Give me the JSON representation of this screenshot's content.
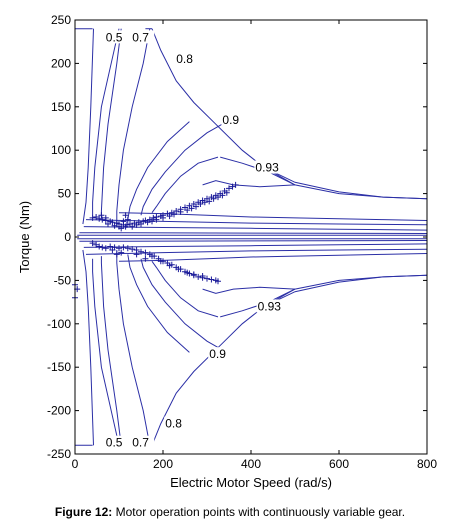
{
  "caption": {
    "label": "Figure 12:",
    "text": " Motor operation points with continuously variable gear."
  },
  "chart_data": {
    "type": "scatter",
    "title": "",
    "xlabel": "Electric Motor Speed (rad/s)",
    "ylabel": "Torque (Nm)",
    "xlim": [
      0,
      800
    ],
    "ylim": [
      -250,
      250
    ],
    "xticks": [
      0,
      200,
      400,
      600,
      800
    ],
    "yticks": [
      -250,
      -200,
      -150,
      -100,
      -50,
      0,
      50,
      100,
      150,
      200,
      250
    ],
    "grid": false,
    "line_color": "#2b2fa6",
    "marker_color": "#1a1a99",
    "efficiency_contours": [
      {
        "label": "0.5",
        "level": 0.5
      },
      {
        "label": "0.7",
        "level": 0.7
      },
      {
        "label": "0.8",
        "level": 0.8
      },
      {
        "label": "0.9",
        "level": 0.9
      },
      {
        "label": "0.93",
        "level": 0.93
      }
    ],
    "contour_labels": [
      {
        "text": "0.5",
        "x": 70,
        "y": 230
      },
      {
        "text": "0.7",
        "x": 130,
        "y": 230
      },
      {
        "text": "0.8",
        "x": 230,
        "y": 205
      },
      {
        "text": "0.9",
        "x": 335,
        "y": 135
      },
      {
        "text": "0.93",
        "x": 410,
        "y": 80
      },
      {
        "text": "0.93",
        "x": 415,
        "y": -80
      },
      {
        "text": "0.9",
        "x": 305,
        "y": -135
      },
      {
        "text": "0.8",
        "x": 205,
        "y": -215
      },
      {
        "text": "0.7",
        "x": 130,
        "y": -237
      },
      {
        "text": "0.5",
        "x": 70,
        "y": -237
      }
    ],
    "series": [
      {
        "points": [
          [
            40,
            22
          ],
          [
            48,
            23
          ],
          [
            55,
            21
          ],
          [
            62,
            20
          ],
          [
            70,
            19
          ],
          [
            80,
            18
          ],
          [
            85,
            17
          ],
          [
            95,
            16
          ],
          [
            100,
            15
          ],
          [
            110,
            14
          ],
          [
            118,
            14
          ],
          [
            125,
            15
          ],
          [
            135,
            16
          ],
          [
            145,
            17
          ],
          [
            155,
            18
          ],
          [
            160,
            19
          ],
          [
            170,
            20
          ],
          [
            178,
            22
          ],
          [
            185,
            23
          ],
          [
            195,
            24
          ],
          [
            200,
            25
          ],
          [
            210,
            27
          ],
          [
            220,
            28
          ],
          [
            230,
            30
          ],
          [
            240,
            32
          ],
          [
            250,
            34
          ],
          [
            260,
            36
          ],
          [
            270,
            38
          ],
          [
            280,
            40
          ],
          [
            290,
            42
          ],
          [
            300,
            44
          ],
          [
            310,
            46
          ],
          [
            320,
            48
          ],
          [
            330,
            50
          ],
          [
            340,
            53
          ],
          [
            350,
            56
          ],
          [
            358,
            58
          ],
          [
            365,
            60
          ],
          [
            110,
            18
          ],
          [
            120,
            20
          ],
          [
            115,
            12
          ],
          [
            105,
            10
          ],
          [
            130,
            12
          ],
          [
            140,
            14
          ],
          [
            150,
            15
          ],
          [
            165,
            17
          ],
          [
            175,
            18
          ],
          [
            185,
            20
          ],
          [
            200,
            22
          ],
          [
            215,
            24
          ],
          [
            225,
            26
          ],
          [
            240,
            29
          ],
          [
            255,
            31
          ],
          [
            265,
            33
          ],
          [
            275,
            35
          ],
          [
            285,
            38
          ],
          [
            295,
            40
          ],
          [
            305,
            41
          ],
          [
            315,
            44
          ],
          [
            325,
            46
          ],
          [
            335,
            48
          ],
          [
            345,
            51
          ],
          [
            75,
            15
          ],
          [
            90,
            13
          ],
          [
            100,
            12
          ],
          [
            115,
            25
          ],
          [
            70,
            22
          ],
          [
            60,
            25
          ],
          [
            40,
            -7
          ],
          [
            48,
            -9
          ],
          [
            55,
            -11
          ],
          [
            62,
            -12
          ],
          [
            70,
            -13
          ],
          [
            80,
            -11
          ],
          [
            90,
            -12
          ],
          [
            100,
            -13
          ],
          [
            110,
            -12
          ],
          [
            120,
            -13
          ],
          [
            130,
            -14
          ],
          [
            140,
            -15
          ],
          [
            150,
            -17
          ],
          [
            160,
            -18
          ],
          [
            170,
            -20
          ],
          [
            180,
            -22
          ],
          [
            190,
            -25
          ],
          [
            200,
            -28
          ],
          [
            210,
            -30
          ],
          [
            220,
            -32
          ],
          [
            230,
            -35
          ],
          [
            240,
            -37
          ],
          [
            250,
            -40
          ],
          [
            260,
            -42
          ],
          [
            270,
            -44
          ],
          [
            280,
            -46
          ],
          [
            290,
            -47
          ],
          [
            300,
            -48
          ],
          [
            310,
            -49
          ],
          [
            320,
            -50
          ],
          [
            325,
            -51
          ],
          [
            95,
            -20
          ],
          [
            105,
            -18
          ],
          [
            85,
            -15
          ],
          [
            140,
            -20
          ],
          [
            160,
            -25
          ],
          [
            175,
            -22
          ],
          [
            195,
            -28
          ],
          [
            215,
            -33
          ],
          [
            235,
            -37
          ],
          [
            255,
            -41
          ],
          [
            270,
            -43
          ],
          [
            290,
            -45
          ],
          [
            0,
            -55
          ],
          [
            0,
            -70
          ],
          [
            5,
            -60
          ]
        ]
      }
    ]
  }
}
